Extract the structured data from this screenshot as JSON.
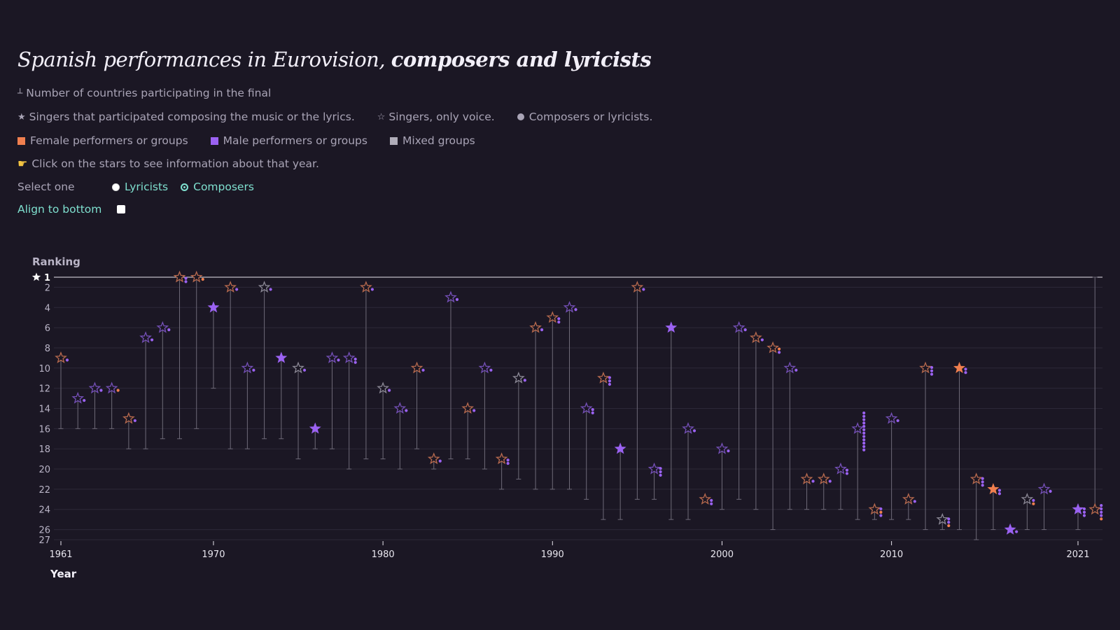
{
  "header": {
    "title_normal": "Spanish performances in Eurovision,",
    "title_bold": "composers and lyricists"
  },
  "legend": {
    "participants": "Number of countries participating in the final",
    "singer_composer": "Singers that participated composing the music or the lyrics.",
    "singer_voice": "Singers, only voice.",
    "composer": "Composers or lyricists.",
    "female": "Female performers or groups",
    "male": "Male performers or groups",
    "mixed": "Mixed groups",
    "hint": "Click on the stars to see information about that year."
  },
  "controls": {
    "select_label": "Select one",
    "option_lyricists": "Lyricists",
    "option_composers": "Composers",
    "selected": "Composers",
    "align_label": "Align to bottom",
    "align_checked": false
  },
  "colors": {
    "female": "#f07f4f",
    "male": "#9b62f2",
    "mixed": "#b0adb9",
    "background": "#1b1724"
  },
  "chart_data": {
    "type": "scatter",
    "xlabel": "Year",
    "ylabel": "Ranking",
    "xlim": [
      1961,
      2021
    ],
    "ylim": [
      27,
      1
    ],
    "x_ticks": [
      1961,
      1970,
      1980,
      1990,
      2000,
      2010,
      2021
    ],
    "y_ticks": [
      1,
      2,
      4,
      6,
      8,
      10,
      12,
      14,
      16,
      18,
      20,
      22,
      24,
      26,
      27
    ],
    "points": [
      {
        "year": 1961,
        "rank": 9,
        "participants": 16,
        "gender": "female",
        "singer_composed": false,
        "composers": [
          "male"
        ]
      },
      {
        "year": 1962,
        "rank": 13,
        "participants": 16,
        "gender": "male",
        "singer_composed": false,
        "composers": [
          "male"
        ]
      },
      {
        "year": 1963,
        "rank": 12,
        "participants": 16,
        "gender": "male",
        "singer_composed": false,
        "composers": [
          "male"
        ]
      },
      {
        "year": 1964,
        "rank": 12,
        "participants": 16,
        "gender": "male",
        "singer_composed": false,
        "composers": [
          "female"
        ]
      },
      {
        "year": 1965,
        "rank": 15,
        "participants": 18,
        "gender": "female",
        "singer_composed": false,
        "composers": [
          "male"
        ]
      },
      {
        "year": 1966,
        "rank": 7,
        "participants": 18,
        "gender": "male",
        "singer_composed": false,
        "composers": [
          "male"
        ]
      },
      {
        "year": 1967,
        "rank": 6,
        "participants": 17,
        "gender": "male",
        "singer_composed": false,
        "composers": [
          "male"
        ]
      },
      {
        "year": 1968,
        "rank": 1,
        "participants": 17,
        "gender": "female",
        "singer_composed": false,
        "composers": [
          "male",
          "male"
        ]
      },
      {
        "year": 1969,
        "rank": 1,
        "participants": 16,
        "gender": "female",
        "singer_composed": false,
        "composers": [
          "female"
        ]
      },
      {
        "year": 1970,
        "rank": 4,
        "participants": 12,
        "gender": "male",
        "singer_composed": true,
        "composers": []
      },
      {
        "year": 1971,
        "rank": 2,
        "participants": 18,
        "gender": "female",
        "singer_composed": false,
        "composers": [
          "male"
        ]
      },
      {
        "year": 1972,
        "rank": 10,
        "participants": 18,
        "gender": "male",
        "singer_composed": false,
        "composers": [
          "male"
        ]
      },
      {
        "year": 1973,
        "rank": 2,
        "participants": 17,
        "gender": "mixed",
        "singer_composed": false,
        "composers": [
          "male"
        ]
      },
      {
        "year": 1974,
        "rank": 9,
        "participants": 17,
        "gender": "male",
        "singer_composed": true,
        "composers": []
      },
      {
        "year": 1975,
        "rank": 10,
        "participants": 19,
        "gender": "mixed",
        "singer_composed": false,
        "composers": [
          "male"
        ]
      },
      {
        "year": 1976,
        "rank": 16,
        "participants": 18,
        "gender": "male",
        "singer_composed": true,
        "composers": []
      },
      {
        "year": 1977,
        "rank": 9,
        "participants": 18,
        "gender": "male",
        "singer_composed": false,
        "composers": [
          "male"
        ]
      },
      {
        "year": 1978,
        "rank": 9,
        "participants": 20,
        "gender": "male",
        "singer_composed": false,
        "composers": [
          "male",
          "male"
        ]
      },
      {
        "year": 1979,
        "rank": 2,
        "participants": 19,
        "gender": "female",
        "singer_composed": false,
        "composers": [
          "male"
        ]
      },
      {
        "year": 1980,
        "rank": 12,
        "participants": 19,
        "gender": "mixed",
        "singer_composed": false,
        "composers": [
          "male"
        ]
      },
      {
        "year": 1981,
        "rank": 14,
        "participants": 20,
        "gender": "male",
        "singer_composed": false,
        "composers": [
          "male"
        ]
      },
      {
        "year": 1982,
        "rank": 10,
        "participants": 18,
        "gender": "female",
        "singer_composed": false,
        "composers": [
          "male"
        ]
      },
      {
        "year": 1983,
        "rank": 19,
        "participants": 20,
        "gender": "female",
        "singer_composed": false,
        "composers": [
          "male"
        ]
      },
      {
        "year": 1984,
        "rank": 3,
        "participants": 19,
        "gender": "male",
        "singer_composed": false,
        "composers": [
          "male"
        ]
      },
      {
        "year": 1985,
        "rank": 14,
        "participants": 19,
        "gender": "female",
        "singer_composed": false,
        "composers": [
          "male"
        ]
      },
      {
        "year": 1986,
        "rank": 10,
        "participants": 20,
        "gender": "male",
        "singer_composed": false,
        "composers": [
          "male"
        ]
      },
      {
        "year": 1987,
        "rank": 19,
        "participants": 22,
        "gender": "female",
        "singer_composed": false,
        "composers": [
          "male",
          "male"
        ]
      },
      {
        "year": 1988,
        "rank": 11,
        "participants": 21,
        "gender": "mixed",
        "singer_composed": false,
        "composers": [
          "male"
        ]
      },
      {
        "year": 1989,
        "rank": 6,
        "participants": 22,
        "gender": "female",
        "singer_composed": false,
        "composers": [
          "male"
        ]
      },
      {
        "year": 1990,
        "rank": 5,
        "participants": 22,
        "gender": "female",
        "singer_composed": false,
        "composers": [
          "male",
          "male"
        ]
      },
      {
        "year": 1991,
        "rank": 4,
        "participants": 22,
        "gender": "male",
        "singer_composed": false,
        "composers": [
          "male"
        ]
      },
      {
        "year": 1992,
        "rank": 14,
        "participants": 23,
        "gender": "male",
        "singer_composed": false,
        "composers": [
          "male",
          "male"
        ]
      },
      {
        "year": 1993,
        "rank": 11,
        "participants": 25,
        "gender": "female",
        "singer_composed": false,
        "composers": [
          "male",
          "male",
          "male"
        ]
      },
      {
        "year": 1994,
        "rank": 18,
        "participants": 25,
        "gender": "male",
        "singer_composed": true,
        "composers": []
      },
      {
        "year": 1995,
        "rank": 2,
        "participants": 23,
        "gender": "female",
        "singer_composed": false,
        "composers": [
          "male"
        ]
      },
      {
        "year": 1996,
        "rank": 20,
        "participants": 23,
        "gender": "male",
        "singer_composed": false,
        "composers": [
          "male",
          "male",
          "male"
        ]
      },
      {
        "year": 1997,
        "rank": 6,
        "participants": 25,
        "gender": "male",
        "singer_composed": true,
        "composers": []
      },
      {
        "year": 1998,
        "rank": 16,
        "participants": 25,
        "gender": "male",
        "singer_composed": false,
        "composers": [
          "male"
        ]
      },
      {
        "year": 1999,
        "rank": 23,
        "participants": 23,
        "gender": "female",
        "singer_composed": false,
        "composers": [
          "male",
          "male"
        ]
      },
      {
        "year": 2000,
        "rank": 18,
        "participants": 24,
        "gender": "male",
        "singer_composed": false,
        "composers": [
          "male"
        ]
      },
      {
        "year": 2001,
        "rank": 6,
        "participants": 23,
        "gender": "male",
        "singer_composed": false,
        "composers": [
          "male"
        ]
      },
      {
        "year": 2002,
        "rank": 7,
        "participants": 24,
        "gender": "female",
        "singer_composed": false,
        "composers": [
          "male"
        ]
      },
      {
        "year": 2003,
        "rank": 8,
        "participants": 26,
        "gender": "female",
        "singer_composed": false,
        "composers": [
          "female",
          "male"
        ]
      },
      {
        "year": 2004,
        "rank": 10,
        "participants": 24,
        "gender": "male",
        "singer_composed": false,
        "composers": [
          "male"
        ]
      },
      {
        "year": 2005,
        "rank": 21,
        "participants": 24,
        "gender": "female",
        "singer_composed": false,
        "composers": [
          "male"
        ]
      },
      {
        "year": 2006,
        "rank": 21,
        "participants": 24,
        "gender": "female",
        "singer_composed": false,
        "composers": [
          "male"
        ]
      },
      {
        "year": 2007,
        "rank": 20,
        "participants": 24,
        "gender": "male",
        "singer_composed": false,
        "composers": [
          "male",
          "male"
        ]
      },
      {
        "year": 2008,
        "rank": 16,
        "participants": 25,
        "gender": "male",
        "singer_composed": false,
        "composers": [
          "male",
          "male",
          "male",
          "male",
          "male",
          "male",
          "male",
          "male",
          "male",
          "male",
          "male",
          "male"
        ]
      },
      {
        "year": 2009,
        "rank": 24,
        "participants": 25,
        "gender": "female",
        "singer_composed": false,
        "composers": [
          "male",
          "female",
          "male"
        ]
      },
      {
        "year": 2010,
        "rank": 15,
        "participants": 25,
        "gender": "male",
        "singer_composed": false,
        "composers": [
          "male"
        ]
      },
      {
        "year": 2011,
        "rank": 23,
        "participants": 25,
        "gender": "female",
        "singer_composed": false,
        "composers": [
          "male"
        ]
      },
      {
        "year": 2012,
        "rank": 10,
        "participants": 26,
        "gender": "female",
        "singer_composed": false,
        "composers": [
          "male",
          "male",
          "male"
        ]
      },
      {
        "year": 2013,
        "rank": 25,
        "participants": 26,
        "gender": "mixed",
        "singer_composed": false,
        "composers": [
          "male",
          "male",
          "female"
        ]
      },
      {
        "year": 2014,
        "rank": 10,
        "participants": 26,
        "gender": "female",
        "singer_composed": true,
        "composers": [
          "male",
          "male"
        ]
      },
      {
        "year": 2015,
        "rank": 21,
        "participants": 27,
        "gender": "female",
        "singer_composed": false,
        "composers": [
          "male",
          "male",
          "male"
        ]
      },
      {
        "year": 2016,
        "rank": 22,
        "participants": 26,
        "gender": "female",
        "singer_composed": true,
        "composers": [
          "male",
          "male"
        ]
      },
      {
        "year": 2017,
        "rank": 26,
        "participants": 26,
        "gender": "male",
        "singer_composed": true,
        "composers": [
          "male"
        ]
      },
      {
        "year": 2018,
        "rank": 23,
        "participants": 26,
        "gender": "mixed",
        "singer_composed": false,
        "composers": [
          "male",
          "female"
        ]
      },
      {
        "year": 2019,
        "rank": 22,
        "participants": 26,
        "gender": "male",
        "singer_composed": false,
        "composers": [
          "male"
        ]
      },
      {
        "year": 2021,
        "rank": 24,
        "participants": 26,
        "gender": "male",
        "singer_composed": true,
        "composers": [
          "male",
          "male",
          "male"
        ]
      },
      {
        "year": 2022,
        "rank": 24,
        "participants": 1,
        "gender": "female",
        "singer_composed": false,
        "composers": [
          "male",
          "male",
          "male",
          "male",
          "female"
        ]
      }
    ]
  }
}
